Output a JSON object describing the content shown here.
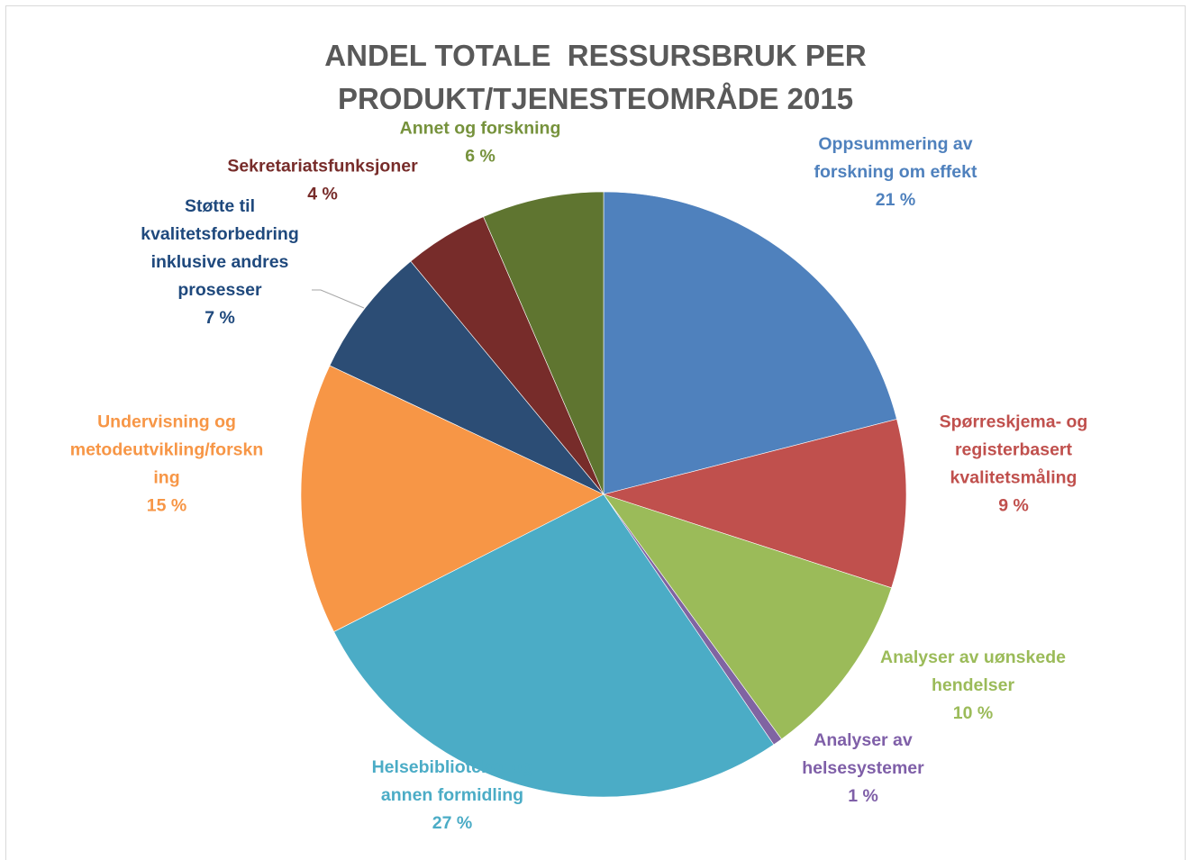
{
  "chart_data": {
    "type": "pie",
    "title": "ANDEL TOTALE  RESSURSBRUK PER\nPRODUKT/TJENESTEOMRÅDE 2015",
    "slices": [
      {
        "label": [
          "Oppsummering av",
          "forskning om effekt"
        ],
        "value": 21,
        "value_label": "21 %",
        "color": "#4F81BD",
        "label_color": "#4F81BD"
      },
      {
        "label": [
          "Spørreskjema- og",
          "registerbasert",
          "kvalitetsmåling"
        ],
        "value": 9,
        "value_label": "9 %",
        "color": "#C0504D",
        "label_color": "#C0504D"
      },
      {
        "label": [
          "Analyser av uønskede",
          "hendelser"
        ],
        "value": 10,
        "value_label": "10 %",
        "color": "#9BBB59",
        "label_color": "#9BBB59"
      },
      {
        "label": [
          "Analyser av",
          "helsesystemer"
        ],
        "value": 0.5,
        "value_label": "1 %",
        "color": "#8064A2",
        "label_color": "#7F5FA8"
      },
      {
        "label": [
          "Helsebiblioteket og",
          "annen formidling"
        ],
        "value": 27,
        "value_label": "27 %",
        "color": "#4BACC6",
        "label_color": "#4BACC6"
      },
      {
        "label": [
          "Undervisning og",
          "metodeutvikling/forskn",
          "ing"
        ],
        "value": 14.5,
        "value_label": "15 %",
        "color": "#F79646",
        "label_color": "#F79646"
      },
      {
        "label": [
          "Støtte til",
          "kvalitetsforbedring",
          "inklusive andres",
          "prosesser"
        ],
        "value": 7,
        "value_label": "7 %",
        "color": "#2C4D75",
        "label_color": "#1F497D"
      },
      {
        "label": [
          "Sekretariatsfunksjoner"
        ],
        "value": 4.5,
        "value_label": "4 %",
        "color": "#772C2A",
        "label_color": "#772C2A"
      },
      {
        "label": [
          "Annet og forskning"
        ],
        "value": 6.5,
        "value_label": "6 %",
        "color": "#5F7530",
        "label_color": "#76923C"
      }
    ],
    "start_angle_deg": 0,
    "direction": "clockwise",
    "legend": "none"
  }
}
